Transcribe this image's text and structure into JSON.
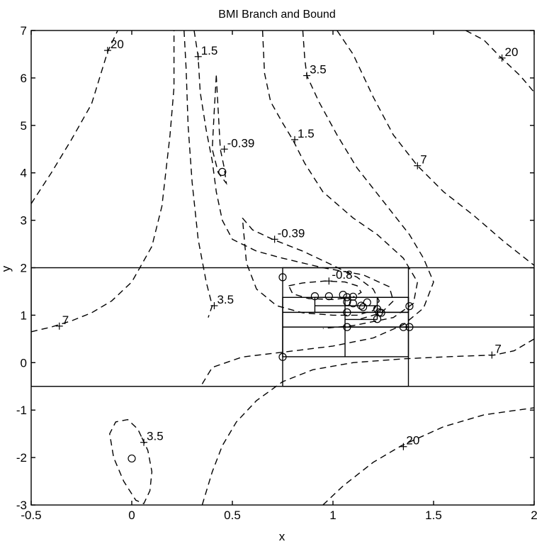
{
  "chart_data": {
    "type": "contour",
    "title": "BMI Branch and Bound",
    "xlabel": "x",
    "ylabel": "y",
    "xlim": [
      -0.5,
      2
    ],
    "ylim": [
      -3,
      7
    ],
    "xticks": [
      -0.5,
      0,
      0.5,
      1,
      1.5,
      2
    ],
    "yticks": [
      -3,
      -2,
      -1,
      0,
      1,
      2,
      3,
      4,
      5,
      6,
      7
    ],
    "contour_levels": [
      -0.8,
      -0.39,
      1.5,
      3.5,
      7,
      20
    ],
    "contour_lines": [
      {
        "level": "20",
        "points": [
          [
            -0.5,
            3.35
          ],
          [
            -0.4,
            4.0
          ],
          [
            -0.3,
            4.7
          ],
          [
            -0.2,
            5.45
          ],
          [
            -0.12,
            6.55
          ],
          [
            -0.07,
            7.0
          ]
        ]
      },
      {
        "level": "20",
        "points": [
          [
            1.66,
            7.0
          ],
          [
            1.75,
            6.8
          ],
          [
            1.83,
            6.45
          ],
          [
            1.93,
            6.05
          ],
          [
            2.0,
            5.7
          ]
        ]
      },
      {
        "level": "20",
        "points": [
          [
            0.95,
            -3.0
          ],
          [
            1.05,
            -2.6
          ],
          [
            1.2,
            -2.1
          ],
          [
            1.34,
            -1.75
          ],
          [
            1.55,
            -1.35
          ],
          [
            1.75,
            -1.1
          ],
          [
            2.0,
            -0.95
          ]
        ]
      },
      {
        "level": "7",
        "points": [
          [
            -0.5,
            0.65
          ],
          [
            -0.4,
            0.75
          ],
          [
            -0.3,
            0.88
          ],
          [
            -0.2,
            1.05
          ],
          [
            -0.1,
            1.3
          ],
          [
            0.0,
            1.7
          ],
          [
            0.1,
            2.45
          ],
          [
            0.15,
            3.3
          ],
          [
            0.19,
            4.8
          ],
          [
            0.21,
            5.8
          ],
          [
            0.21,
            7.0
          ]
        ]
      },
      {
        "level": "7",
        "points": [
          [
            1.02,
            7.0
          ],
          [
            1.1,
            6.5
          ],
          [
            1.2,
            5.6
          ],
          [
            1.3,
            4.8
          ],
          [
            1.42,
            4.15
          ],
          [
            1.55,
            3.6
          ],
          [
            1.7,
            3.1
          ],
          [
            1.85,
            2.55
          ],
          [
            2.0,
            2.05
          ]
        ]
      },
      {
        "level": "7",
        "points": [
          [
            0.35,
            -3.0
          ],
          [
            0.4,
            -2.3
          ],
          [
            0.45,
            -1.75
          ],
          [
            0.52,
            -1.25
          ],
          [
            0.62,
            -0.8
          ],
          [
            0.75,
            -0.4
          ],
          [
            0.9,
            -0.15
          ],
          [
            1.1,
            0.0
          ],
          [
            1.35,
            0.08
          ],
          [
            1.6,
            0.13
          ],
          [
            1.8,
            0.16
          ],
          [
            1.9,
            0.25
          ],
          [
            2.0,
            0.5
          ]
        ]
      },
      {
        "level": "3.5",
        "points": [
          [
            0.85,
            7.0
          ],
          [
            0.86,
            6.4
          ],
          [
            0.87,
            6.05
          ],
          [
            0.93,
            5.5
          ],
          [
            1.02,
            4.8
          ],
          [
            1.12,
            4.1
          ],
          [
            1.25,
            3.4
          ],
          [
            1.38,
            2.7
          ],
          [
            1.45,
            2.2
          ],
          [
            1.5,
            1.7
          ],
          [
            1.45,
            1.15
          ],
          [
            1.35,
            0.8
          ],
          [
            1.2,
            0.52
          ],
          [
            1.0,
            0.35
          ],
          [
            0.75,
            0.22
          ],
          [
            0.55,
            0.12
          ],
          [
            0.4,
            -0.1
          ],
          [
            0.35,
            -0.45
          ]
        ]
      },
      {
        "level": "3.5",
        "points": [
          [
            0.26,
            7.0
          ],
          [
            0.27,
            6.2
          ],
          [
            0.28,
            5.0
          ],
          [
            0.3,
            3.8
          ],
          [
            0.33,
            2.6
          ],
          [
            0.37,
            1.7
          ],
          [
            0.4,
            1.2
          ],
          [
            0.38,
            0.95
          ]
        ]
      },
      {
        "level": "3.5",
        "points": [
          [
            0.05,
            -1.58
          ],
          [
            0.08,
            -1.85
          ],
          [
            0.1,
            -2.3
          ],
          [
            0.09,
            -2.7
          ],
          [
            0.06,
            -2.97
          ],
          [
            0.02,
            -2.9
          ],
          [
            -0.04,
            -2.5
          ],
          [
            -0.09,
            -2.0
          ],
          [
            -0.11,
            -1.5
          ],
          [
            -0.08,
            -1.25
          ],
          [
            -0.02,
            -1.2
          ],
          [
            0.03,
            -1.4
          ],
          [
            0.05,
            -1.58
          ]
        ]
      },
      {
        "level": "1.5",
        "points": [
          [
            0.65,
            7.0
          ],
          [
            0.66,
            6.1
          ],
          [
            0.69,
            5.5
          ],
          [
            0.75,
            5.05
          ],
          [
            0.8,
            4.7
          ],
          [
            0.86,
            4.2
          ],
          [
            0.95,
            3.6
          ],
          [
            1.1,
            3.05
          ],
          [
            1.22,
            2.7
          ],
          [
            1.35,
            2.2
          ],
          [
            1.42,
            1.7
          ],
          [
            1.4,
            1.25
          ],
          [
            1.3,
            0.95
          ],
          [
            1.1,
            0.78
          ],
          [
            0.95,
            0.72
          ]
        ]
      },
      {
        "level": "1.5",
        "points": [
          [
            0.31,
            7.0
          ],
          [
            0.33,
            6.45
          ],
          [
            0.34,
            5.7
          ],
          [
            0.37,
            4.9
          ],
          [
            0.4,
            4.25
          ],
          [
            0.42,
            3.6
          ],
          [
            0.45,
            3.0
          ],
          [
            0.5,
            2.6
          ],
          [
            0.62,
            2.35
          ],
          [
            0.75,
            2.2
          ],
          [
            0.95,
            2.0
          ],
          [
            1.15,
            1.85
          ],
          [
            1.28,
            1.6
          ],
          [
            1.3,
            1.3
          ],
          [
            1.24,
            1.05
          ],
          [
            1.12,
            0.9
          ]
        ]
      },
      {
        "level": "-0.39",
        "points": [
          [
            0.42,
            6.05
          ],
          [
            0.44,
            4.5
          ],
          [
            0.46,
            4.1
          ],
          [
            0.47,
            3.78
          ],
          [
            0.43,
            4.0
          ],
          [
            0.4,
            4.5
          ],
          [
            0.41,
            5.3
          ],
          [
            0.42,
            6.05
          ]
        ]
      },
      {
        "level": "-0.39",
        "points": [
          [
            0.55,
            3.05
          ],
          [
            0.6,
            2.8
          ],
          [
            0.7,
            2.6
          ],
          [
            0.85,
            2.35
          ],
          [
            1.0,
            2.05
          ],
          [
            1.12,
            1.8
          ],
          [
            1.2,
            1.55
          ],
          [
            1.23,
            1.3
          ],
          [
            1.2,
            1.1
          ],
          [
            1.12,
            1.0
          ],
          [
            1.0,
            1.0
          ],
          [
            0.85,
            1.05
          ],
          [
            0.72,
            1.2
          ],
          [
            0.62,
            1.55
          ],
          [
            0.57,
            2.1
          ],
          [
            0.55,
            3.05
          ]
        ]
      },
      {
        "level": "-0.8",
        "points": [
          [
            0.78,
            1.62
          ],
          [
            0.85,
            1.68
          ],
          [
            0.96,
            1.72
          ],
          [
            1.06,
            1.7
          ],
          [
            1.12,
            1.62
          ],
          [
            1.14,
            1.48
          ],
          [
            1.1,
            1.38
          ],
          [
            1.0,
            1.33
          ],
          [
            0.88,
            1.35
          ],
          [
            0.8,
            1.45
          ],
          [
            0.78,
            1.62
          ]
        ]
      }
    ],
    "contour_label_marks": [
      {
        "text": "20",
        "x": -0.12,
        "y": 6.58
      },
      {
        "text": "1.5",
        "x": 0.33,
        "y": 6.45
      },
      {
        "text": "3.5",
        "x": 0.87,
        "y": 6.05
      },
      {
        "text": "20",
        "x": 1.84,
        "y": 6.42
      },
      {
        "text": "-0.39",
        "x": 0.46,
        "y": 4.5
      },
      {
        "text": "1.5",
        "x": 0.81,
        "y": 4.7
      },
      {
        "text": "7",
        "x": 1.42,
        "y": 4.15
      },
      {
        "text": "-0.39",
        "x": 0.71,
        "y": 2.6
      },
      {
        "text": "-0.8",
        "x": 0.98,
        "y": 1.72
      },
      {
        "text": "3.5",
        "x": 0.41,
        "y": 1.2
      },
      {
        "text": "7",
        "x": -0.36,
        "y": 0.77
      },
      {
        "text": "7",
        "x": 1.79,
        "y": 0.16
      },
      {
        "text": "3.5",
        "x": 0.06,
        "y": -1.68
      },
      {
        "text": "20",
        "x": 1.35,
        "y": -1.77
      }
    ],
    "branch_and_bound_boxes": [
      {
        "xmin": -0.5,
        "xmax": 2.0,
        "ymin": -0.5,
        "ymax": 2.0
      },
      {
        "xmin": 0.75,
        "xmax": 1.375,
        "ymin": -0.5,
        "ymax": 2.0
      },
      {
        "xmin": 0.75,
        "xmax": 2.0,
        "ymin": 0.75,
        "ymax": 0.75
      },
      {
        "xmin": 0.75,
        "xmax": 1.375,
        "ymin": 0.125,
        "ymax": 1.375
      },
      {
        "xmin": 0.75,
        "xmax": 1.375,
        "ymin": 1.06,
        "ymax": 1.06
      },
      {
        "xmin": 0.91,
        "xmax": 1.375,
        "ymin": 1.06,
        "ymax": 1.375
      },
      {
        "xmin": 1.06,
        "xmax": 1.06,
        "ymin": 0.125,
        "ymax": 1.375
      },
      {
        "xmin": 0.91,
        "xmax": 1.22,
        "ymin": 1.2,
        "ymax": 1.2
      },
      {
        "xmin": 1.22,
        "xmax": 1.22,
        "ymin": 0.91,
        "ymax": 1.375
      },
      {
        "xmin": 1.06,
        "xmax": 1.22,
        "ymin": 0.91,
        "ymax": 0.91
      },
      {
        "xmin": 1.06,
        "xmax": 1.375,
        "ymin": 0.75,
        "ymax": 0.75
      }
    ],
    "circle_points": [
      [
        0.45,
        4.02
      ],
      [
        0.0,
        -2.02
      ],
      [
        0.75,
        1.8
      ],
      [
        0.75,
        0.12
      ],
      [
        0.91,
        1.4
      ],
      [
        0.98,
        1.4
      ],
      [
        1.05,
        1.43
      ],
      [
        1.07,
        1.38
      ],
      [
        1.07,
        1.28
      ],
      [
        1.07,
        1.06
      ],
      [
        1.07,
        0.75
      ],
      [
        1.1,
        1.25
      ],
      [
        1.14,
        1.2
      ],
      [
        1.15,
        1.17
      ],
      [
        1.17,
        1.27
      ],
      [
        1.22,
        1.13
      ],
      [
        1.22,
        0.92
      ],
      [
        1.24,
        1.05
      ],
      [
        1.23,
        1.06
      ],
      [
        1.35,
        0.75
      ],
      [
        1.38,
        0.75
      ],
      [
        1.38,
        1.19
      ],
      [
        1.1,
        1.39
      ]
    ]
  }
}
